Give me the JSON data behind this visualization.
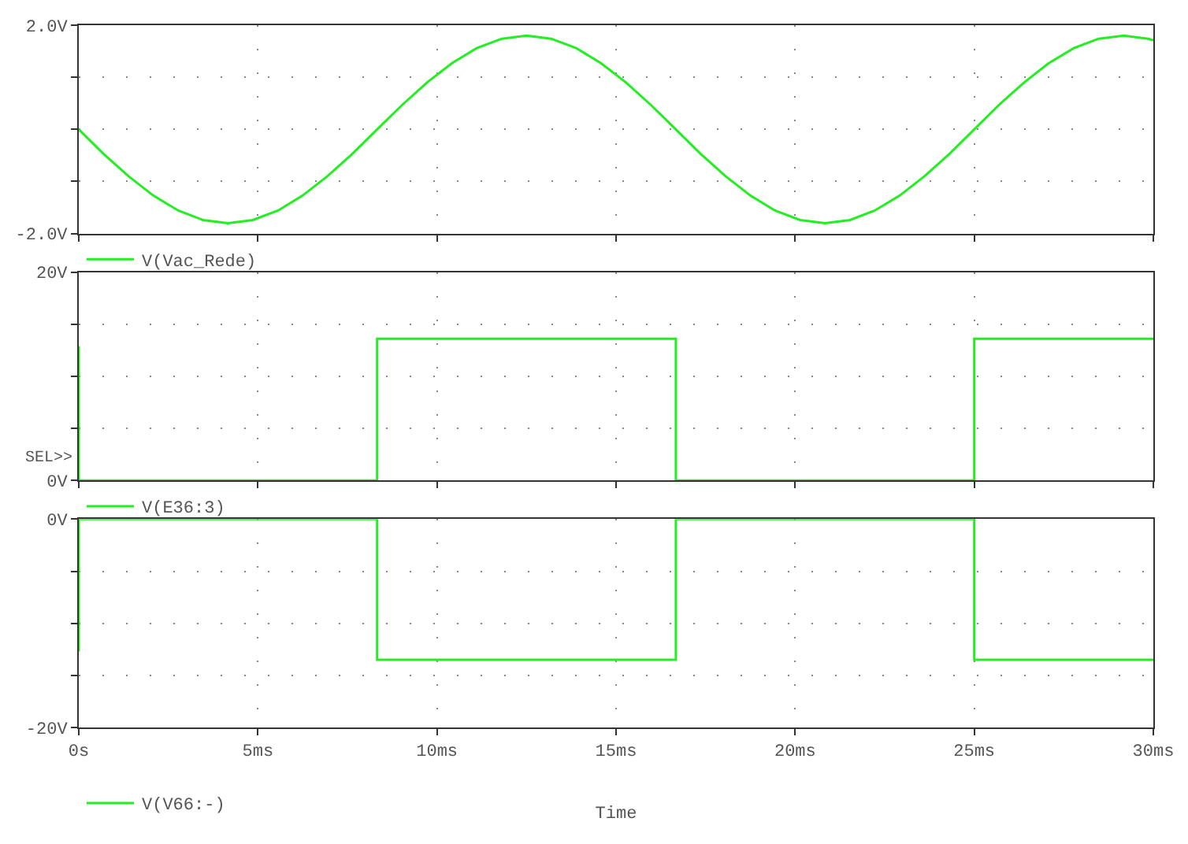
{
  "chart_data": [
    {
      "type": "line",
      "xlim": [
        0,
        30
      ],
      "xticks": [
        {
          "value": 0,
          "label": null
        },
        {
          "value": 5,
          "label": null
        },
        {
          "value": 10,
          "label": null
        },
        {
          "value": 15,
          "label": null
        },
        {
          "value": 20,
          "label": null
        },
        {
          "value": 25,
          "label": null
        },
        {
          "value": 30,
          "label": null
        }
      ],
      "ylim": [
        -2,
        2
      ],
      "yticks": [
        {
          "value": -2,
          "label": "-2.0V"
        },
        {
          "value": -1,
          "label": null
        },
        {
          "value": 0,
          "label": null
        },
        {
          "value": 1,
          "label": null
        },
        {
          "value": 2,
          "label": "2.0V"
        }
      ],
      "tick_labels": "y",
      "grid": true,
      "legend": "bottom left",
      "marker": "none",
      "line_style": "solid",
      "series": [
        {
          "name": "V(Vac_Rede)",
          "color": "#22ee22",
          "x": [
            0,
            0.69,
            1.39,
            2.08,
            2.78,
            3.47,
            4.17,
            4.86,
            5.56,
            6.25,
            6.94,
            7.64,
            8.33,
            9.03,
            9.72,
            10.42,
            11.11,
            11.81,
            12.5,
            13.19,
            13.89,
            14.58,
            15.28,
            15.97,
            16.67,
            17.36,
            18.06,
            18.75,
            19.44,
            20.14,
            20.83,
            21.53,
            22.22,
            22.92,
            23.61,
            24.31,
            25,
            25.69,
            26.39,
            27.08,
            27.78,
            28.47,
            29.17,
            29.86,
            30
          ],
          "values": [
            0,
            -0.47,
            -0.9,
            -1.27,
            -1.56,
            -1.74,
            -1.8,
            -1.74,
            -1.56,
            -1.27,
            -0.9,
            -0.47,
            0,
            0.47,
            0.9,
            1.27,
            1.56,
            1.74,
            1.8,
            1.74,
            1.56,
            1.27,
            0.9,
            0.47,
            0,
            -0.47,
            -0.9,
            -1.27,
            -1.56,
            -1.74,
            -1.8,
            -1.74,
            -1.56,
            -1.27,
            -0.9,
            -0.47,
            0,
            0.47,
            0.9,
            1.27,
            1.56,
            1.74,
            1.8,
            1.74,
            1.71
          ]
        }
      ]
    },
    {
      "type": "line",
      "xlim": [
        0,
        30
      ],
      "xticks": [
        {
          "value": 0,
          "label": null
        },
        {
          "value": 5,
          "label": null
        },
        {
          "value": 10,
          "label": null
        },
        {
          "value": 15,
          "label": null
        },
        {
          "value": 20,
          "label": null
        },
        {
          "value": 25,
          "label": null
        },
        {
          "value": 30,
          "label": null
        }
      ],
      "ylim": [
        0,
        20
      ],
      "yticks": [
        {
          "value": 0,
          "label": "0V"
        },
        {
          "value": 5,
          "label": null
        },
        {
          "value": 10,
          "label": null
        },
        {
          "value": 15,
          "label": null
        },
        {
          "value": 20,
          "label": "20V"
        }
      ],
      "tick_labels": "y",
      "grid": true,
      "legend": "bottom left",
      "marker": "none",
      "line_style": "solid",
      "annotations": [
        "SEL>>"
      ],
      "series": [
        {
          "name": "V(E36:3)",
          "color": "#22ee22",
          "x": [
            0,
            0,
            8.33,
            8.33,
            16.67,
            16.67,
            25,
            25,
            30
          ],
          "values": [
            12.9,
            0,
            0,
            13.6,
            13.6,
            0,
            0,
            13.6,
            13.6
          ]
        }
      ]
    },
    {
      "type": "line",
      "xlim": [
        0,
        30
      ],
      "xticks": [
        {
          "value": 0,
          "label": "0s"
        },
        {
          "value": 5,
          "label": "5ms"
        },
        {
          "value": 10,
          "label": "10ms"
        },
        {
          "value": 15,
          "label": "15ms"
        },
        {
          "value": 20,
          "label": "20ms"
        },
        {
          "value": 25,
          "label": "25ms"
        },
        {
          "value": 30,
          "label": "30ms"
        }
      ],
      "ylim": [
        -20,
        0
      ],
      "yticks": [
        {
          "value": -20,
          "label": "-20V"
        },
        {
          "value": -15,
          "label": null
        },
        {
          "value": -10,
          "label": null
        },
        {
          "value": -5,
          "label": null
        },
        {
          "value": 0,
          "label": "0V"
        }
      ],
      "xlabel": "Time",
      "grid": true,
      "legend": "bottom left",
      "marker": "none",
      "line_style": "solid",
      "series": [
        {
          "name": "V(V66:-)",
          "color": "#22ee22",
          "x": [
            0,
            0,
            8.33,
            8.33,
            16.67,
            16.67,
            25,
            25,
            30
          ],
          "values": [
            -12.7,
            0,
            0,
            -13.5,
            -13.5,
            0,
            0,
            -13.5,
            -13.5
          ]
        }
      ]
    }
  ]
}
